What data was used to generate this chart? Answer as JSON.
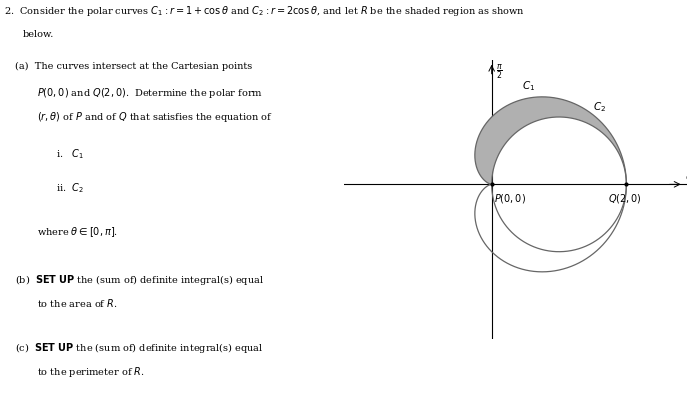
{
  "bg_color": "#ffffff",
  "text_color": "#000000",
  "curve_color": "#666666",
  "shade_color": "#b0b0b0",
  "fig_width": 6.87,
  "fig_height": 3.99,
  "dpi": 100,
  "fs_main": 7.0,
  "fs_label": 7.5,
  "fs_axis": 8.0
}
